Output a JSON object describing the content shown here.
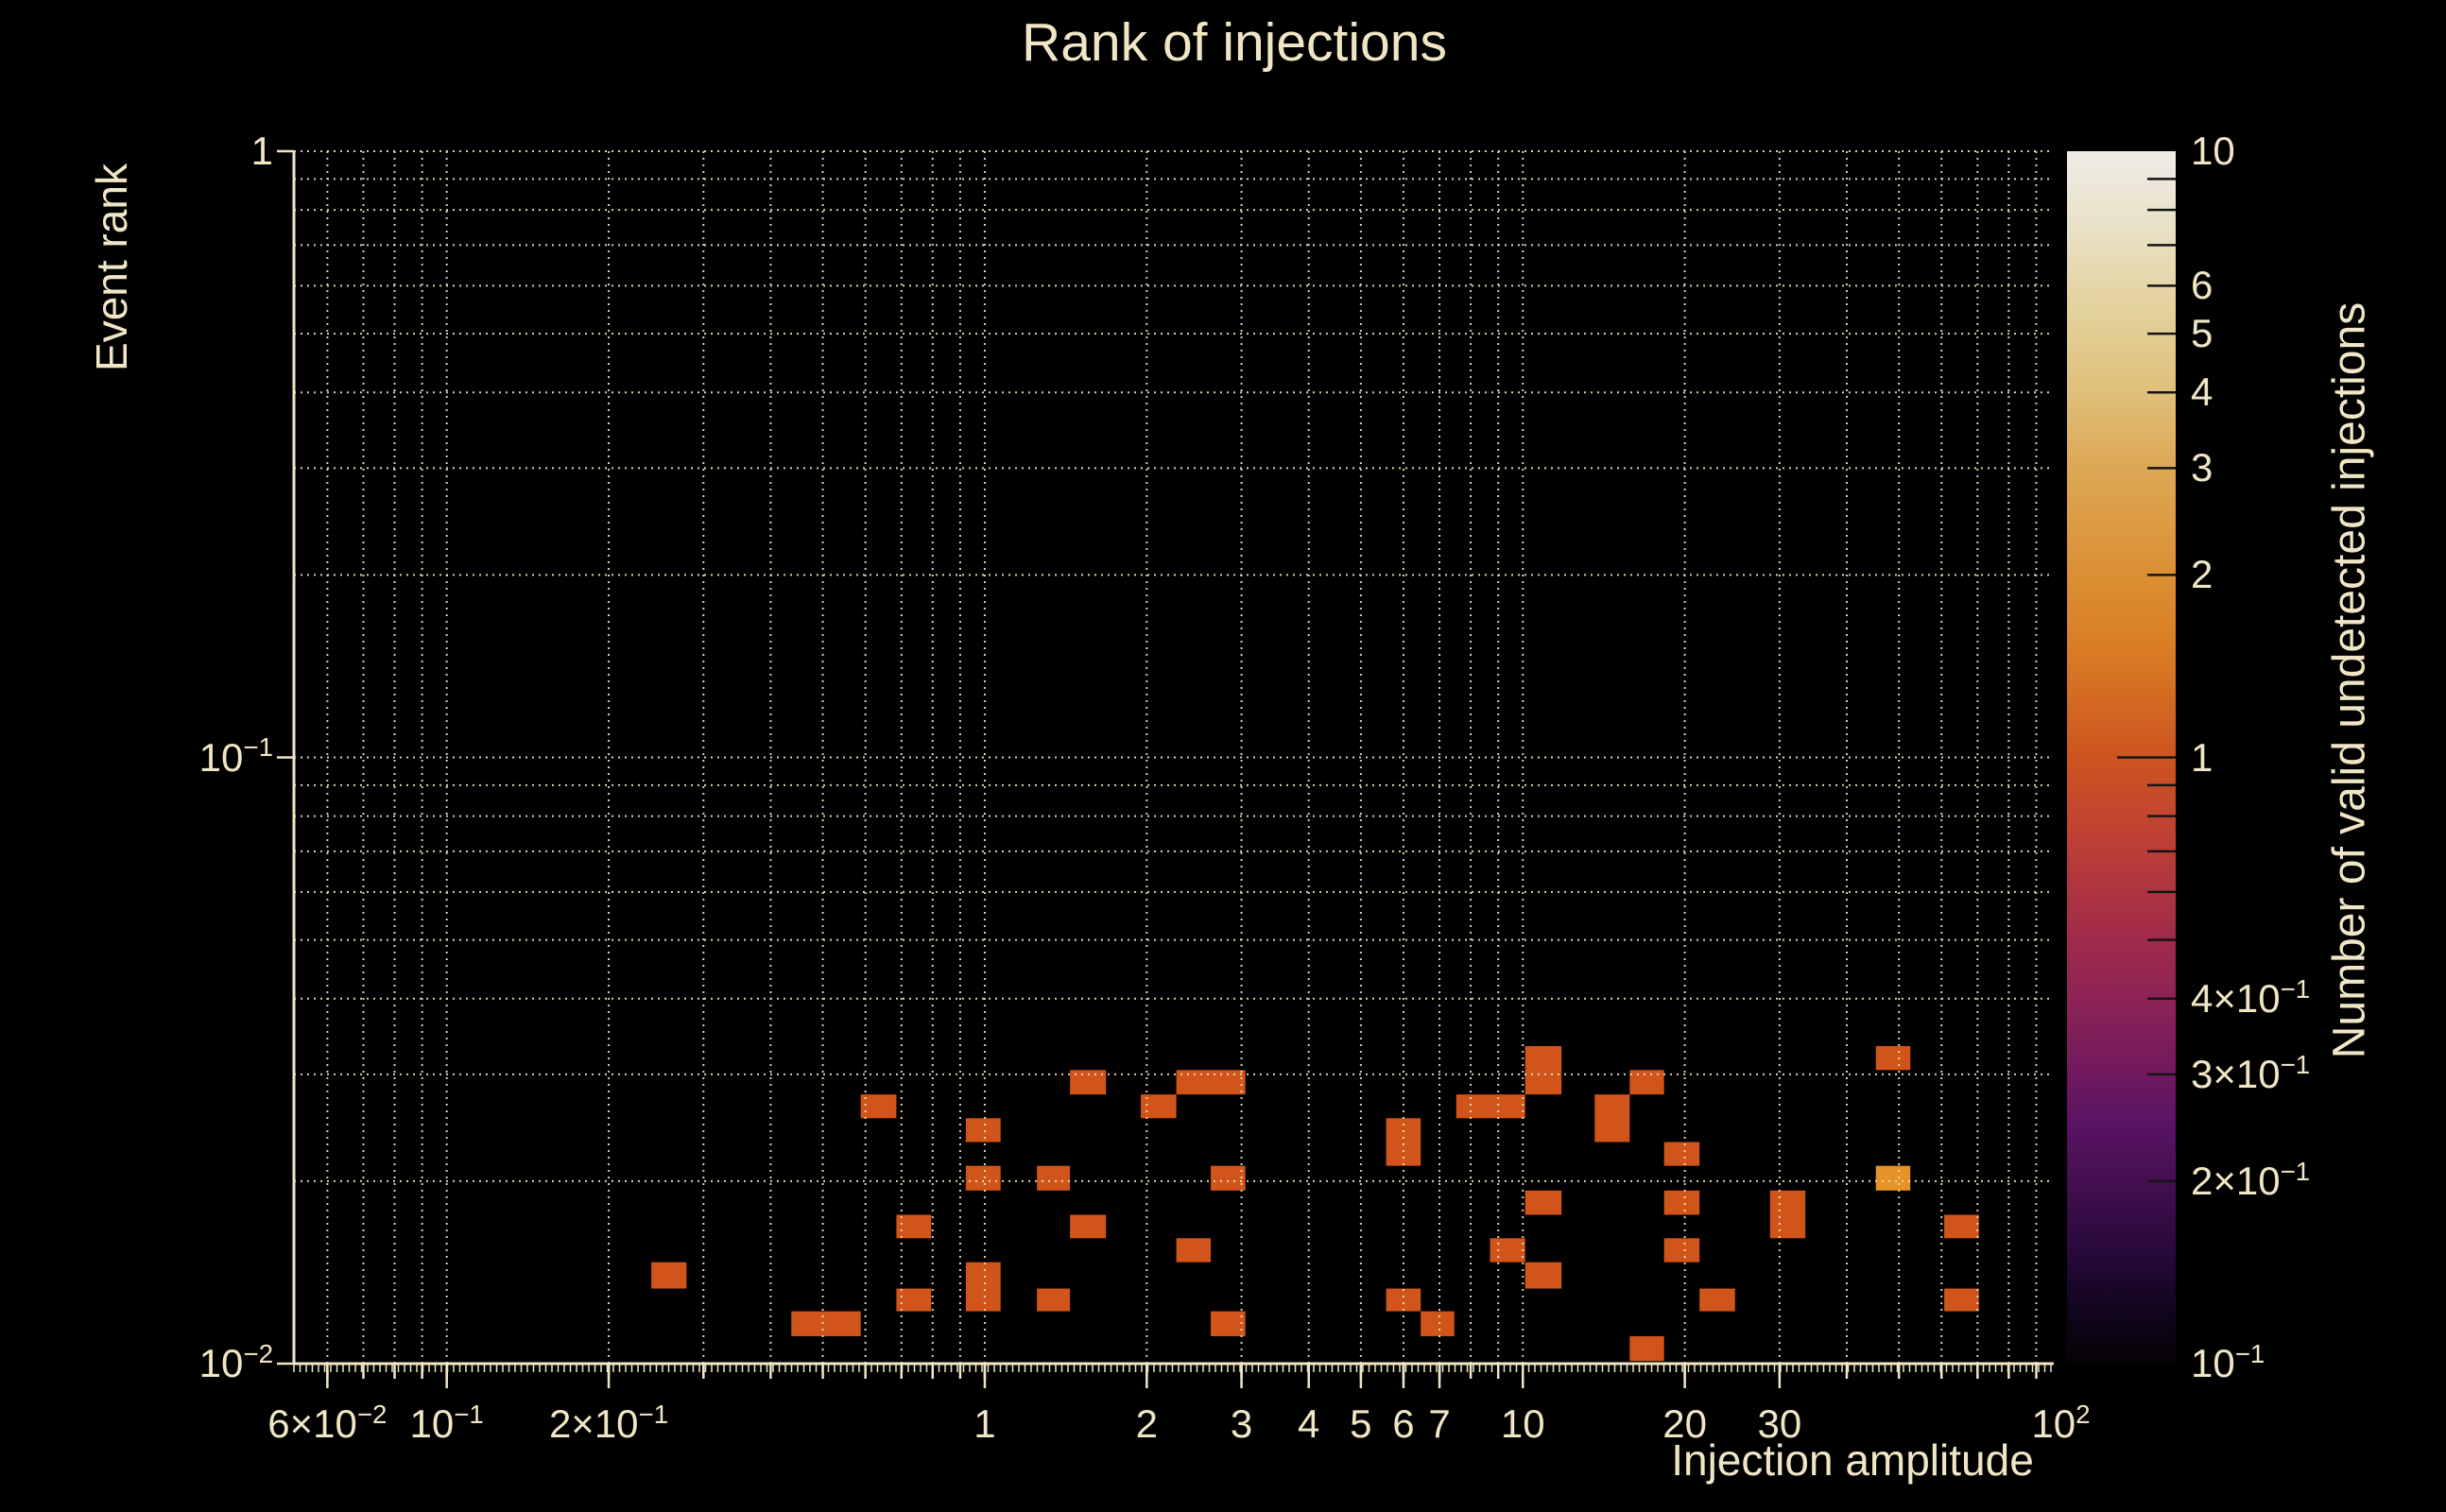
{
  "chart_data": {
    "type": "heatmap",
    "title": "Rank of injections",
    "xlabel": "Injection amplitude",
    "ylabel": "Event rank",
    "colorbar_label": "Number of valid undetected injections",
    "xscale": "log",
    "yscale": "log",
    "colorscale": "log",
    "xlim": [
      0.052,
      97
    ],
    "ylim": [
      0.01,
      1
    ],
    "clim": [
      0.1,
      10
    ],
    "grid": true,
    "x_ticks": [
      {
        "v": 0.06,
        "label": "6×10^−2"
      },
      {
        "v": 0.1,
        "label": "10^−1"
      },
      {
        "v": 0.2,
        "label": "2×10^−1"
      },
      {
        "v": 1,
        "label": "1"
      },
      {
        "v": 2,
        "label": "2"
      },
      {
        "v": 3,
        "label": "3"
      },
      {
        "v": 4,
        "label": "4"
      },
      {
        "v": 5,
        "label": "5"
      },
      {
        "v": 6,
        "label": "6"
      },
      {
        "v": 7,
        "label": "7"
      },
      {
        "v": 10,
        "label": "10"
      },
      {
        "v": 20,
        "label": "20"
      },
      {
        "v": 30,
        "label": "30"
      },
      {
        "v": 100,
        "label": "10^2"
      }
    ],
    "y_ticks": [
      {
        "v": 1,
        "label": "1"
      },
      {
        "v": 0.1,
        "label": "10^−1"
      },
      {
        "v": 0.01,
        "label": "10^−2"
      }
    ],
    "colorbar_ticks": [
      {
        "v": 10,
        "label": "10"
      },
      {
        "v": 6,
        "label": "6"
      },
      {
        "v": 5,
        "label": "5"
      },
      {
        "v": 4,
        "label": "4"
      },
      {
        "v": 3,
        "label": "3"
      },
      {
        "v": 2,
        "label": "2"
      },
      {
        "v": 1,
        "label": "1"
      },
      {
        "v": 0.4,
        "label": "4×10^−1"
      },
      {
        "v": 0.3,
        "label": "3×10^−1"
      },
      {
        "v": 0.2,
        "label": "2×10^−1"
      },
      {
        "v": 0.1,
        "label": "10^−1"
      }
    ],
    "colorbar_minor_tick_values": [
      9,
      8,
      7,
      6,
      5,
      4,
      3,
      2,
      0.9,
      0.8,
      0.7,
      0.6,
      0.5,
      0.4,
      0.3,
      0.2
    ],
    "colorbar_major_tick_values": [
      1
    ],
    "cells": [
      {
        "x0": 0.588,
        "x1": 0.685,
        "y0": 0.0254,
        "y1": 0.0278,
        "count": 1
      },
      {
        "x0": 0.922,
        "x1": 1.07,
        "y0": 0.0232,
        "y1": 0.0254,
        "count": 1
      },
      {
        "x0": 0.922,
        "x1": 1.07,
        "y0": 0.0193,
        "y1": 0.0212,
        "count": 1
      },
      {
        "x0": 1.25,
        "x1": 1.44,
        "y0": 0.0193,
        "y1": 0.0212,
        "count": 1
      },
      {
        "x0": 0.685,
        "x1": 0.795,
        "y0": 0.0161,
        "y1": 0.0176,
        "count": 1
      },
      {
        "x0": 0.24,
        "x1": 0.279,
        "y0": 0.0133,
        "y1": 0.0147,
        "count": 1
      },
      {
        "x0": 0.685,
        "x1": 0.795,
        "y0": 0.0122,
        "y1": 0.0133,
        "count": 1
      },
      {
        "x0": 0.922,
        "x1": 1.07,
        "y0": 0.0122,
        "y1": 0.0147,
        "count": 1
      },
      {
        "x0": 1.25,
        "x1": 1.44,
        "y0": 0.0122,
        "y1": 0.0133,
        "count": 1
      },
      {
        "x0": 0.437,
        "x1": 0.588,
        "y0": 0.0111,
        "y1": 0.0122,
        "count": 1
      },
      {
        "x0": 1.44,
        "x1": 1.68,
        "y0": 0.0278,
        "y1": 0.0305,
        "count": 1
      },
      {
        "x0": 1.95,
        "x1": 2.27,
        "y0": 0.0254,
        "y1": 0.0278,
        "count": 1
      },
      {
        "x0": 2.27,
        "x1": 3.05,
        "y0": 0.0278,
        "y1": 0.0305,
        "count": 1
      },
      {
        "x0": 2.63,
        "x1": 3.05,
        "y0": 0.0193,
        "y1": 0.0212,
        "count": 1
      },
      {
        "x0": 1.44,
        "x1": 1.68,
        "y0": 0.0161,
        "y1": 0.0176,
        "count": 1
      },
      {
        "x0": 2.27,
        "x1": 2.63,
        "y0": 0.0147,
        "y1": 0.0161,
        "count": 1
      },
      {
        "x0": 2.63,
        "x1": 3.05,
        "y0": 0.0111,
        "y1": 0.0122,
        "count": 1
      },
      {
        "x0": 5.57,
        "x1": 6.46,
        "y0": 0.0212,
        "y1": 0.0254,
        "count": 1
      },
      {
        "x0": 5.57,
        "x1": 6.46,
        "y0": 0.0122,
        "y1": 0.0133,
        "count": 1
      },
      {
        "x0": 6.46,
        "x1": 7.46,
        "y0": 0.0111,
        "y1": 0.0122,
        "count": 1
      },
      {
        "x0": 10.1,
        "x1": 11.8,
        "y0": 0.0278,
        "y1": 0.0334,
        "count": 1
      },
      {
        "x0": 7.52,
        "x1": 10.1,
        "y0": 0.0254,
        "y1": 0.0278,
        "count": 1
      },
      {
        "x0": 13.6,
        "x1": 15.8,
        "y0": 0.0232,
        "y1": 0.0278,
        "count": 1
      },
      {
        "x0": 15.8,
        "x1": 18.3,
        "y0": 0.0278,
        "y1": 0.0305,
        "count": 1
      },
      {
        "x0": 18.3,
        "x1": 21.3,
        "y0": 0.0212,
        "y1": 0.0232,
        "count": 1
      },
      {
        "x0": 10.1,
        "x1": 11.8,
        "y0": 0.0176,
        "y1": 0.0193,
        "count": 1
      },
      {
        "x0": 18.3,
        "x1": 21.3,
        "y0": 0.0176,
        "y1": 0.0193,
        "count": 1
      },
      {
        "x0": 28.8,
        "x1": 33.5,
        "y0": 0.0161,
        "y1": 0.0193,
        "count": 1
      },
      {
        "x0": 8.69,
        "x1": 10.1,
        "y0": 0.0147,
        "y1": 0.0161,
        "count": 1
      },
      {
        "x0": 18.3,
        "x1": 21.3,
        "y0": 0.0147,
        "y1": 0.0161,
        "count": 1
      },
      {
        "x0": 10.1,
        "x1": 11.8,
        "y0": 0.0133,
        "y1": 0.0147,
        "count": 1
      },
      {
        "x0": 21.3,
        "x1": 24.8,
        "y0": 0.0122,
        "y1": 0.0133,
        "count": 1
      },
      {
        "x0": 15.8,
        "x1": 18.3,
        "y0": 0.0101,
        "y1": 0.0111,
        "count": 1
      },
      {
        "x0": 45.3,
        "x1": 52.5,
        "y0": 0.0305,
        "y1": 0.0334,
        "count": 1
      },
      {
        "x0": 45.3,
        "x1": 52.5,
        "y0": 0.0193,
        "y1": 0.0212,
        "count": 2
      },
      {
        "x0": 60.7,
        "x1": 70.4,
        "y0": 0.0161,
        "y1": 0.0176,
        "count": 1
      },
      {
        "x0": 60.7,
        "x1": 70.4,
        "y0": 0.0122,
        "y1": 0.0133,
        "count": 1
      }
    ],
    "colors": {
      "background": "#000000",
      "text": "#f0e6c6",
      "grid": "#ece2c0",
      "axis": "#f0e6c6",
      "count_1": "#d1541a",
      "count_2": "#e59328",
      "colorbar_tick": "#141414",
      "colormap_stops": [
        [
          0.0,
          "#efece7"
        ],
        [
          0.06,
          "#e9e2c8"
        ],
        [
          0.111,
          "#e5d6a8"
        ],
        [
          0.15,
          "#e2cd92"
        ],
        [
          0.2,
          "#dfbf79"
        ],
        [
          0.26,
          "#dda855"
        ],
        [
          0.35,
          "#db8f33"
        ],
        [
          0.41,
          "#d97d24"
        ],
        [
          0.5,
          "#cd5420"
        ],
        [
          0.56,
          "#c04232"
        ],
        [
          0.65,
          "#a02a4b"
        ],
        [
          0.7,
          "#8d2355"
        ],
        [
          0.76,
          "#71195e"
        ],
        [
          0.8,
          "#5a1464"
        ],
        [
          0.85,
          "#440f50"
        ],
        [
          0.91,
          "#26093a"
        ],
        [
          0.96,
          "#10051b"
        ],
        [
          1.0,
          "#060206"
        ]
      ]
    }
  }
}
